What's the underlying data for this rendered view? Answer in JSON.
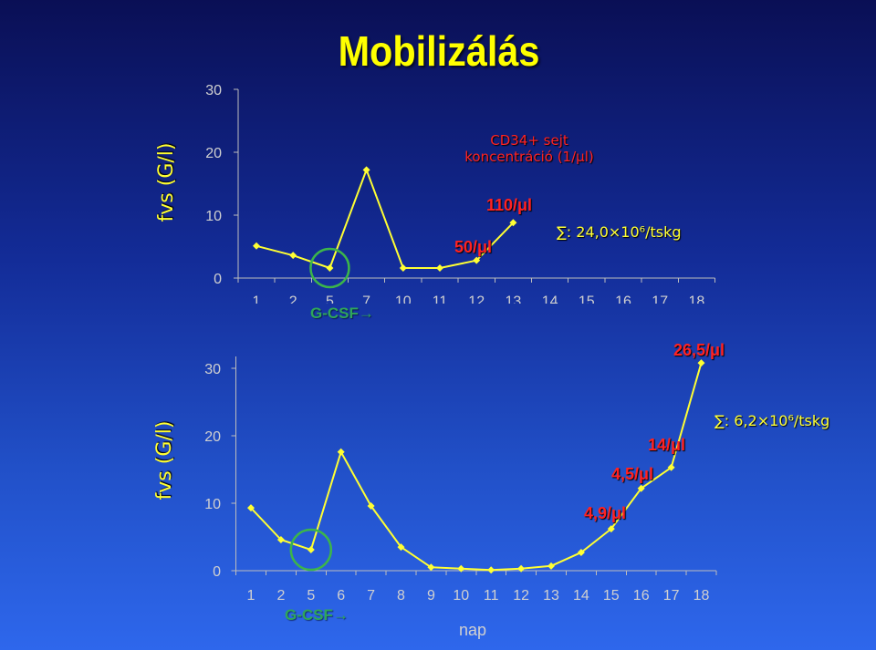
{
  "slide": {
    "title": "Mobilizálás"
  },
  "colors": {
    "background_top": "#0a0f55",
    "background_bottom": "#2e67ec",
    "title": "#ffff00",
    "series_line": "#ffff33",
    "axis_text": "#d0d0d0",
    "annotation_red": "#ff2222",
    "annotation_yellow": "#ffff33",
    "g_csf_green": "#2fa65a",
    "circle_green": "#3cb54a"
  },
  "chart_data": [
    {
      "type": "line",
      "ylabel": "fvs (G/l)",
      "categories": [
        "1",
        "2",
        "5",
        "7",
        "10",
        "11",
        "12",
        "13",
        "14",
        "15",
        "16",
        "17",
        "18"
      ],
      "series": [
        {
          "values": [
            5.1,
            3.6,
            1.6,
            17.2,
            1.6,
            1.6,
            2.8,
            8.8,
            null,
            null,
            null,
            null,
            null
          ]
        }
      ],
      "ylim": [
        0,
        30
      ],
      "yticks": [
        0,
        10,
        20,
        30
      ],
      "grid": false,
      "circled_category": "5",
      "annotations": {
        "cd34_title_line1": "CD34+ sejt",
        "cd34_title_line2": "koncentráció (1/μl)",
        "cd34_label_1": "50/μl",
        "cd34_label_2": "110/μl",
        "total": "∑: 24,0×10⁶/tskg",
        "g_csf": "G-CSF→"
      }
    },
    {
      "type": "line",
      "xlabel": "nap",
      "ylabel": "fvs (G/l)",
      "categories": [
        "1",
        "2",
        "5",
        "6",
        "7",
        "8",
        "9",
        "10",
        "11",
        "12",
        "13",
        "14",
        "15",
        "16",
        "17",
        "18"
      ],
      "series": [
        {
          "values": [
            9.3,
            4.6,
            3.1,
            17.6,
            9.6,
            3.5,
            0.5,
            0.3,
            0.1,
            0.3,
            0.7,
            2.7,
            6.2,
            12.2,
            15.3,
            30.8
          ]
        }
      ],
      "ylim": [
        0,
        30
      ],
      "yticks": [
        0,
        10,
        20,
        30
      ],
      "grid": false,
      "circled_category": "5",
      "annotations": {
        "cd34_label_1": "4,9/μl",
        "cd34_label_2": "4,5/μl",
        "cd34_label_3": "14/μl",
        "cd34_label_4": "26,5/μl",
        "total": "∑: 6,2×10⁶/tskg",
        "g_csf": "G-CSF→"
      }
    }
  ]
}
